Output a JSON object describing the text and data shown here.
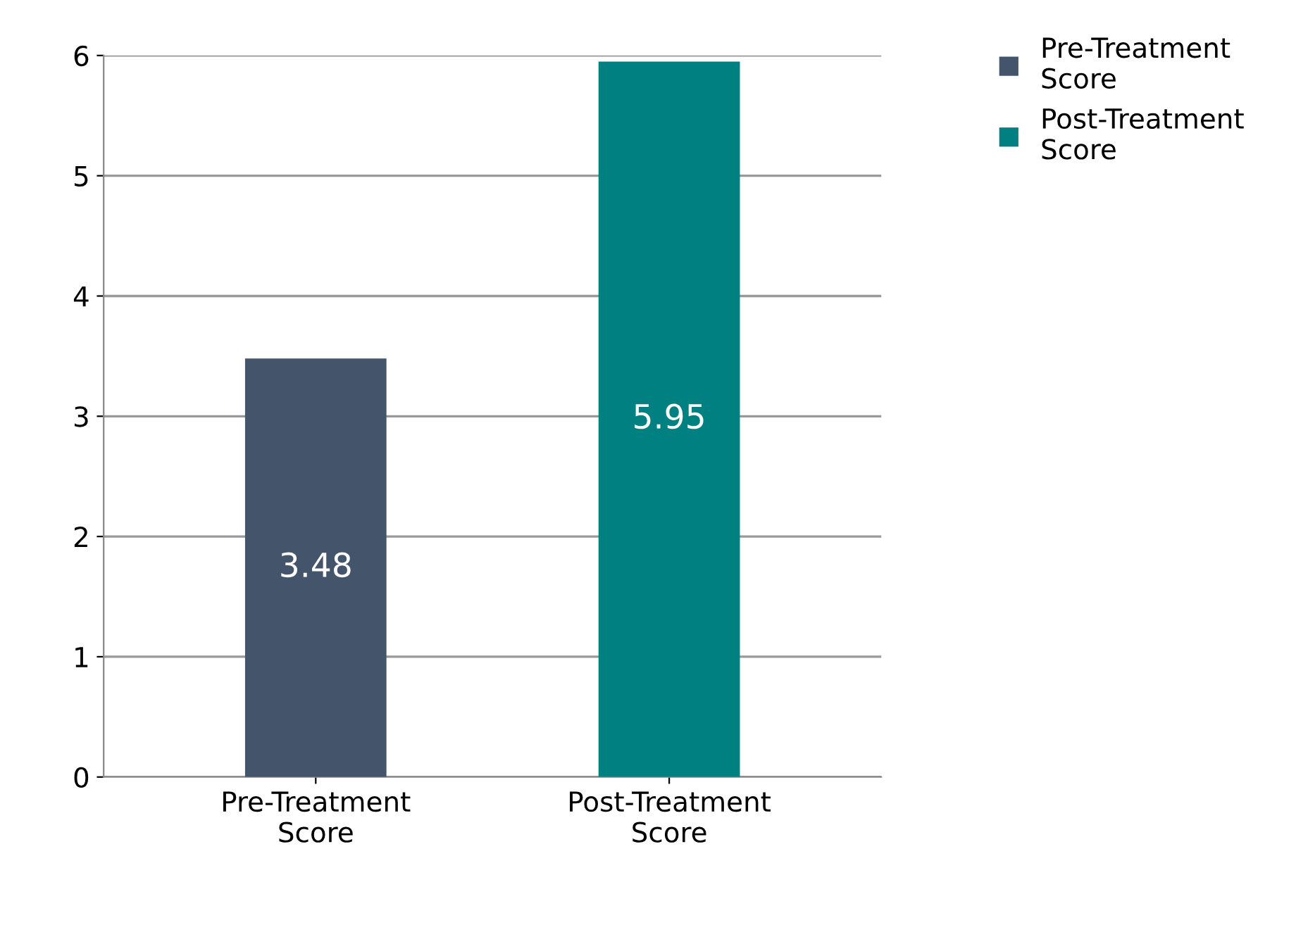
{
  "chart_data": {
    "type": "bar",
    "categories": [
      "Pre-Treatment Score",
      "Post-Treatment Score"
    ],
    "series": [
      {
        "name": "Pre-Treatment Score",
        "color": "#44546a",
        "values": [
          3.48,
          null
        ]
      },
      {
        "name": "Post-Treatment Score",
        "color": "#008080",
        "values": [
          null,
          5.95
        ]
      }
    ],
    "ylim": [
      0,
      6
    ],
    "yticks": [
      0,
      1,
      2,
      3,
      4,
      5,
      6
    ],
    "grid": "y",
    "legend": "top right",
    "data_labels": true
  }
}
